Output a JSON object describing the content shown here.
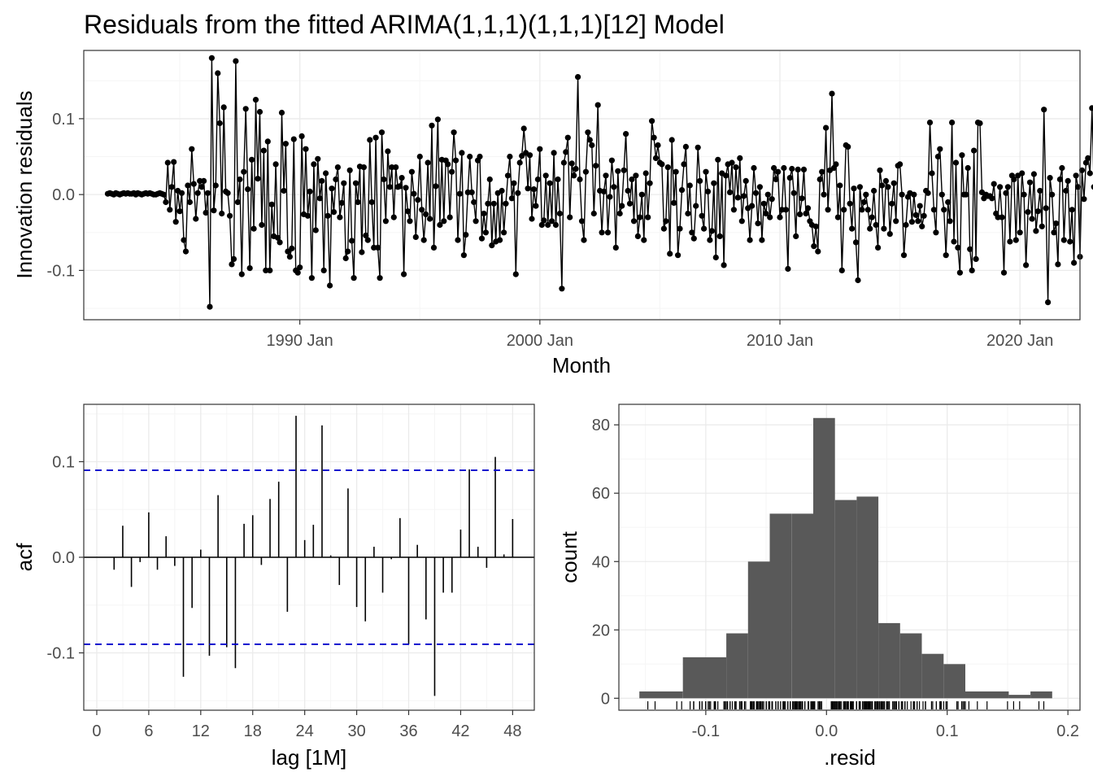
{
  "title": "Residuals from the fitted ARIMA(1,1,1)(1,1,1)[12] Model",
  "chart_data": [
    {
      "type": "line",
      "panel": "time-series",
      "xlabel": "Month",
      "ylabel": "Innovation residuals",
      "x_ticks": [
        "1990 Jan",
        "2000 Jan",
        "2010 Jan",
        "2020 Jan"
      ],
      "y_ticks": [
        "-0.1",
        "0.0",
        "0.1"
      ],
      "x_range": [
        "1981 Jan",
        "2022 Jul"
      ],
      "ylim": [
        -0.165,
        0.19
      ],
      "grid": true,
      "marker": "point",
      "x_start": "1982 Jan",
      "x_frequency": "monthly",
      "values": [
        0.001,
        0.002,
        0.001,
        0.0,
        0.002,
        0.001,
        0.0,
        0.001,
        0.002,
        0.001,
        0.002,
        0.001,
        0.001,
        0.002,
        0.0,
        0.002,
        0.001,
        0.0,
        0.001,
        0.002,
        0.001,
        0.002,
        0.001,
        0.0,
        0.0,
        0.001,
        0.002,
        0.001,
        0.0,
        -0.01,
        0.042,
        -0.02,
        0.01,
        0.043,
        -0.036,
        0.005,
        -0.022,
        0.002,
        -0.06,
        -0.075,
        0.012,
        -0.01,
        0.06,
        0.014,
        -0.032,
        0.002,
        0.018,
        0.01,
        0.018,
        -0.024,
        0.002,
        -0.148,
        0.18,
        -0.021,
        0.012,
        0.16,
        0.094,
        -0.025,
        0.115,
        0.004,
        0.002,
        -0.028,
        -0.092,
        -0.085,
        0.176,
        -0.01,
        0.02,
        -0.105,
        0.03,
        0.113,
        0.007,
        -0.097,
        0.046,
        -0.045,
        0.125,
        0.021,
        0.109,
        -0.04,
        0.058,
        -0.1,
        0.07,
        -0.1,
        -0.013,
        -0.055,
        0.04,
        -0.057,
        -0.063,
        0.108,
        0.005,
        0.067,
        -0.075,
        -0.082,
        -0.071,
        0.073,
        -0.1,
        -0.103,
        -0.096,
        0.077,
        -0.026,
        0.06,
        -0.028,
        0.004,
        -0.11,
        0.04,
        -0.047,
        0.047,
        -0.005,
        0.018,
        -0.1,
        0.028,
        -0.028,
        -0.12,
        0.008,
        -0.023,
        0.02,
        0.036,
        -0.03,
        -0.011,
        0.015,
        -0.084,
        -0.075,
        0.032,
        -0.061,
        -0.11,
        0.015,
        -0.01,
        0.037,
        -0.076,
        0.036,
        -0.054,
        -0.06,
        0.072,
        -0.01,
        -0.07,
        0.075,
        -0.07,
        -0.11,
        0.082,
        0.02,
        -0.035,
        0.057,
        0.01,
        0.036,
        -0.03,
        0.036,
        0.01,
        0.011,
        0.022,
        -0.105,
        0.009,
        -0.022,
        -0.035,
        0.03,
        0.001,
        -0.056,
        -0.007,
        0.05,
        -0.02,
        -0.06,
        -0.026,
        0.042,
        -0.032,
        0.091,
        -0.07,
        0.011,
        0.099,
        -0.04,
        0.046,
        -0.035,
        0.045,
        0.04,
        -0.03,
        0.03,
        0.082,
        0.045,
        -0.06,
        0.001,
        0.055,
        -0.08,
        -0.053,
        0.003,
        0.05,
        0.003,
        -0.01,
        -0.035,
        0.045,
        0.05,
        -0.058,
        -0.025,
        -0.05,
        -0.012,
        0.02,
        -0.067,
        -0.012,
        -0.062,
        0.002,
        -0.06,
        0.005,
        -0.05,
        -0.012,
        0.025,
        0.05,
        -0.005,
        0.015,
        -0.105,
        0.002,
        0.042,
        0.051,
        0.087,
        0.055,
        0.008,
        0.052,
        -0.032,
        0.007,
        -0.015,
        0.02,
        0.06,
        -0.04,
        -0.034,
        0.025,
        -0.04,
        0.015,
        -0.035,
        0.055,
        -0.04,
        0.02,
        -0.025,
        -0.124,
        0.042,
        0.056,
        0.075,
        -0.03,
        0.041,
        0.025,
        0.034,
        0.155,
        0.02,
        -0.035,
        -0.06,
        0.03,
        0.082,
        0.072,
        0.065,
        -0.025,
        0.038,
        0.118,
        0.005,
        -0.05,
        0.004,
        0.025,
        -0.05,
        -0.003,
        0.045,
        0.01,
        -0.07,
        0.031,
        -0.025,
        -0.015,
        0.032,
        0.08,
        0.005,
        -0.012,
        0.02,
        -0.035,
        0.025,
        -0.055,
        -0.03,
        0.0,
        -0.06,
        0.028,
        -0.03,
        0.015,
        0.097,
        0.075,
        0.048,
        0.065,
        0.042,
        0.04,
        -0.045,
        -0.035,
        0.036,
        -0.078,
        0.072,
        -0.011,
        0.03,
        -0.08,
        -0.045,
        0.006,
        0.04,
        0.063,
        -0.025,
        0.012,
        -0.05,
        -0.058,
        -0.015,
        0.062,
        0.018,
        -0.028,
        -0.045,
        0.03,
        0.004,
        -0.06,
        -0.048,
        0.015,
        -0.083,
        0.046,
        -0.055,
        0.028,
        -0.093,
        0.025,
        0.04,
        0.003,
        0.042,
        -0.02,
        0.036,
        -0.004,
        0.048,
        -0.035,
        -0.002,
        0.018,
        -0.018,
        -0.06,
        -0.015,
        0.035,
        0.002,
        -0.038,
        0.01,
        -0.06,
        -0.012,
        -0.025,
        0.0,
        -0.03,
        -0.006,
        0.035,
        0.02,
        0.03,
        -0.03,
        -0.02,
        0.035,
        -0.02,
        -0.098,
        0.022,
        0.034,
        0.002,
        -0.055,
        0.033,
        -0.026,
        -0.005,
        0.033,
        -0.025,
        -0.018,
        -0.035,
        -0.04,
        -0.068,
        -0.042,
        -0.075,
        0.02,
        0.03,
        0.0,
        0.088,
        -0.02,
        0.032,
        0.133,
        0.035,
        0.04,
        -0.03,
        0.012,
        -0.1,
        -0.02,
        0.065,
        0.063,
        -0.012,
        -0.045,
        0.008,
        -0.063,
        -0.113,
        0.01,
        -0.02,
        -0.01,
        0.0,
        -0.02,
        -0.045,
        -0.03,
        0.005,
        -0.04,
        -0.07,
        0.032,
        0.012,
        -0.045,
        0.018,
        0.01,
        -0.052,
        -0.012,
        0.015,
        -0.035,
        0.038,
        0.04,
        0.0,
        -0.08,
        -0.04,
        -0.003,
        0.002,
        -0.036,
        0.0,
        -0.027,
        -0.035,
        -0.015,
        -0.042,
        -0.028,
        0.005,
        0.002,
        0.095,
        0.028,
        -0.02,
        -0.05,
        0.05,
        0.06,
        0.0,
        -0.02,
        -0.08,
        -0.01,
        -0.035,
        0.095,
        -0.062,
        0.042,
        -0.07,
        -0.103,
        0.052,
        0.0,
        0.0,
        0.035,
        -0.072,
        -0.1,
        0.058,
        -0.085,
        0.095,
        0.094,
        0.003,
        -0.005,
        0.0,
        -0.002,
        -0.002,
        -0.005,
        0.014,
        -0.025,
        -0.03,
        0.01,
        -0.03,
        -0.103,
        0.002,
        0.01,
        -0.062,
        0.025,
        0.02,
        -0.06,
        0.025,
        -0.05,
        0.028,
        0.0,
        -0.093,
        -0.023,
        0.016,
        -0.032,
        0.027,
        -0.048,
        -0.022,
        0.005,
        -0.042,
        0.112,
        -0.018,
        -0.142,
        0.022,
        0.0,
        -0.05,
        -0.038,
        -0.092,
        0.02,
        0.035,
        -0.06,
        0.005,
        0.018,
        -0.062,
        -0.02,
        -0.09,
        0.025,
        0.01,
        -0.082,
        0.032,
        -0.006,
        0.042,
        0.048,
        0.028,
        0.114,
        0.01,
        -0.058,
        0.022,
        0.0,
        -0.045,
        -0.057,
        0.091,
        0.02,
        0.0,
        0.015,
        -0.092,
        0.04,
        0.022,
        0.025,
        0.042,
        -0.01,
        0.03,
        0.017,
        0.003,
        0.0,
        -0.005,
        -0.015,
        0.032,
        0.05,
        0.015,
        0.052,
        0.035,
        0.04,
        0.044,
        0.032,
        -0.045,
        0.058,
        0.003,
        0.045,
        0.032,
        0.022,
        0.015,
        -0.015,
        -0.045,
        0.0,
        -0.01,
        0.015,
        -0.015,
        -0.005,
        0.042,
        0.042,
        0.035,
        0.005,
        -0.025,
        0.028,
        -0.02,
        -0.025,
        0.065,
        -0.035,
        -0.02,
        0.055,
        0.015,
        -0.028,
        0.006,
        -0.045,
        -0.025,
        -0.003,
        -0.03,
        -0.02,
        -0.015,
        0.058,
        0.022,
        0.04,
        0.1,
        -0.07,
        0.045,
        0.15,
        -0.103,
        -0.02,
        0.05,
        0.03,
        0.032,
        -0.022,
        0.028,
        0.033
      ]
    },
    {
      "type": "bar",
      "panel": "acf",
      "xlabel": "lag [1M]",
      "ylabel": "acf",
      "x_ticks": [
        "0",
        "6",
        "12",
        "18",
        "24",
        "30",
        "36",
        "42",
        "48"
      ],
      "y_ticks": [
        "-0.1",
        "0.0",
        "0.1"
      ],
      "xlim": [
        -1.5,
        50.5
      ],
      "ylim": [
        -0.16,
        0.16
      ],
      "grid": true,
      "confidence_bounds": [
        0.091,
        -0.091
      ],
      "bound_color": "#0000cc",
      "lags": [
        1,
        2,
        3,
        4,
        5,
        6,
        7,
        8,
        9,
        10,
        11,
        12,
        13,
        14,
        15,
        16,
        17,
        18,
        19,
        20,
        21,
        22,
        23,
        24,
        25,
        26,
        27,
        28,
        29,
        30,
        31,
        32,
        33,
        34,
        35,
        36,
        37,
        38,
        39,
        40,
        41,
        42,
        43,
        44,
        45,
        46,
        47,
        48
      ],
      "values": [
        0.0,
        -0.013,
        0.033,
        -0.031,
        -0.005,
        0.047,
        -0.013,
        0.022,
        -0.009,
        -0.125,
        -0.053,
        0.008,
        -0.103,
        0.065,
        -0.094,
        -0.116,
        0.035,
        0.044,
        -0.008,
        0.061,
        0.079,
        -0.057,
        0.148,
        0.018,
        0.034,
        0.138,
        0.002,
        -0.029,
        0.072,
        -0.052,
        -0.067,
        0.011,
        -0.037,
        -0.002,
        0.041,
        -0.091,
        0.013,
        -0.065,
        -0.145,
        -0.037,
        -0.037,
        0.029,
        0.092,
        0.011,
        -0.011,
        0.105,
        0.003,
        0.04
      ]
    },
    {
      "type": "bar",
      "subtype": "histogram",
      "panel": "histogram",
      "xlabel": ".resid",
      "ylabel": "count",
      "x_ticks": [
        "-0.1",
        "0.0",
        "0.1",
        "0.2"
      ],
      "y_ticks": [
        "0",
        "20",
        "40",
        "60",
        "80"
      ],
      "xlim": [
        -0.172,
        0.21
      ],
      "ylim": [
        -3.5,
        86
      ],
      "grid": true,
      "bar_color": "#595959",
      "bins": [
        {
          "x0": -0.155,
          "x1": -0.119,
          "count": 2
        },
        {
          "x0": -0.119,
          "x1": -0.083,
          "count": 12
        },
        {
          "x0": -0.083,
          "x1": -0.065,
          "count": 19
        },
        {
          "x0": -0.065,
          "x1": -0.047,
          "count": 40
        },
        {
          "x0": -0.047,
          "x1": -0.029,
          "count": 54
        },
        {
          "x0": -0.029,
          "x1": -0.011,
          "count": 54
        },
        {
          "x0": -0.011,
          "x1": 0.007,
          "count": 82
        },
        {
          "x0": 0.007,
          "x1": 0.025,
          "count": 58
        },
        {
          "x0": 0.025,
          "x1": 0.043,
          "count": 59
        },
        {
          "x0": 0.043,
          "x1": 0.061,
          "count": 22
        },
        {
          "x0": 0.061,
          "x1": 0.079,
          "count": 19
        },
        {
          "x0": 0.079,
          "x1": 0.097,
          "count": 13
        },
        {
          "x0": 0.097,
          "x1": 0.115,
          "count": 10
        },
        {
          "x0": 0.115,
          "x1": 0.151,
          "count": 2
        },
        {
          "x0": 0.151,
          "x1": 0.169,
          "count": 1
        },
        {
          "x0": 0.169,
          "x1": 0.187,
          "count": 2
        }
      ],
      "rug": true
    }
  ]
}
